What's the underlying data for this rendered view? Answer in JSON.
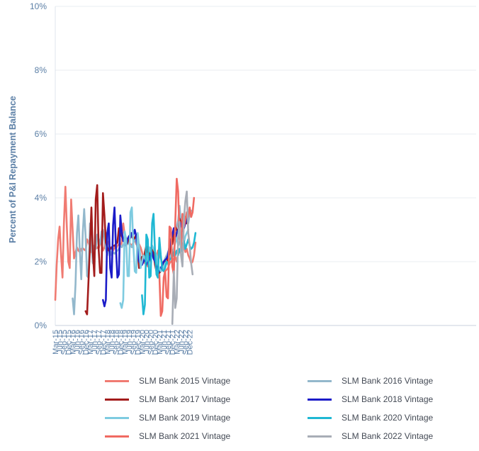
{
  "chart_data": {
    "type": "line",
    "title": "",
    "ylabel": "Percent of P&I Repayment  Balance",
    "xlabel": "",
    "ylim": [
      0,
      10
    ],
    "y_ticks": [
      "0%",
      "2%",
      "4%",
      "6%",
      "8%",
      "10%"
    ],
    "x_ticks": [
      "Mar-15",
      "Jun-15",
      "Sep-15",
      "Dec-15",
      "Mar-16",
      "Jun-16",
      "Sep-16",
      "Dec-16",
      "Mar-17",
      "Jun-17",
      "Sep-17",
      "Dec-17",
      "Mar-18",
      "Jun-18",
      "Sep-18",
      "Dec-18",
      "Mar-19",
      "Jun-19",
      "Sep-19",
      "Dec-19",
      "Mar-20",
      "Jun-20",
      "Sep-20",
      "Dec-20",
      "Mar-21",
      "Jun-21",
      "Sep-21",
      "Dec-21",
      "Mar-22",
      "Jun-22",
      "Sep-22",
      "Dec-22"
    ],
    "grid": "horizontal",
    "legend_position": "bottom",
    "series": [
      {
        "name": "SLM Bank 2015 Vintage",
        "color": "#f07b72",
        "start": "Mar-15",
        "values": [
          0.8,
          1.9,
          2.7,
          3.1,
          2.2,
          1.5,
          3.2,
          4.35,
          3.1,
          2.0,
          1.8,
          3.95,
          3.0,
          2.1,
          2.3,
          2.45,
          2.35,
          2.3,
          2.4,
          2.42,
          2.38,
          2.35,
          2.7,
          2.6,
          2.45,
          2.3,
          2.25,
          2.5,
          2.4,
          2.45,
          2.4,
          2.6,
          2.55,
          2.35,
          2.45,
          2.9,
          2.65,
          2.5,
          2.45,
          2.4,
          2.35,
          2.45,
          2.4,
          2.5,
          2.55,
          2.5,
          2.6,
          3.2,
          2.85,
          2.75,
          2.65,
          2.6,
          2.55,
          2.5,
          2.6,
          2.7,
          2.55,
          2.6,
          2.55,
          2.45,
          2.3,
          2.1,
          1.95,
          1.9,
          1.85,
          2.1,
          2.0,
          2.4,
          2.3,
          2.2,
          2.1,
          2.35,
          2.25,
          2.1,
          1.95,
          1.8,
          1.7,
          1.75,
          1.8,
          1.95,
          2.0,
          2.05,
          2.1,
          2.15,
          2.0,
          2.25,
          2.3,
          2.4,
          2.45,
          2.5,
          2.3,
          2.4,
          2.2,
          2.1,
          1.95,
          2.0,
          2.2,
          2.6
        ]
      },
      {
        "name": "SLM Bank 2016 Vintage",
        "color": "#93b8cc",
        "start": "Mar-16",
        "values": [
          0.85,
          0.35,
          1.3,
          2.9,
          3.45,
          2.3,
          1.45,
          2.9,
          3.65,
          2.8,
          1.55,
          1.5,
          3.2,
          2.55,
          1.95,
          2.5,
          2.4,
          2.85,
          2.7,
          2.55,
          2.95,
          3.0,
          2.7,
          2.4,
          2.2,
          2.5,
          2.35,
          2.2,
          2.3,
          2.25,
          2.3,
          2.35,
          2.4,
          2.5,
          2.45,
          2.55,
          2.5,
          2.6,
          2.65,
          2.55,
          2.5,
          2.45,
          2.6,
          2.75,
          2.6,
          2.5,
          2.45,
          2.15,
          1.95,
          2.0,
          2.1,
          2.2,
          2.3,
          2.4,
          2.35,
          2.25,
          2.1,
          2.0,
          1.9,
          1.8,
          1.7,
          1.75,
          1.85,
          2.0,
          2.1,
          2.2,
          2.3,
          2.4,
          2.6,
          2.8,
          3.0,
          2.9,
          3.1,
          3.3,
          3.75,
          3.2,
          3.0,
          3.1,
          3.2,
          3.4,
          3.2,
          3.5,
          3.6
        ]
      },
      {
        "name": "SLM Bank 2017 Vintage",
        "color": "#a31c1c",
        "start": "Dec-16",
        "values": [
          0.45,
          0.35,
          1.4,
          2.5,
          3.7,
          2.3,
          1.55,
          3.95,
          4.4,
          2.4,
          1.65,
          1.65,
          4.15,
          3.45,
          2.6,
          2.45,
          2.35,
          2.4,
          2.45,
          2.5,
          2.5,
          2.55,
          2.6,
          3.05,
          2.9,
          2.8,
          2.7,
          2.6,
          2.5,
          2.6,
          2.75,
          2.9,
          2.8,
          2.7,
          2.75,
          2.85,
          2.3,
          1.8,
          2.0,
          2.15,
          2.0,
          2.3,
          2.5,
          2.3,
          2.2,
          2.4,
          2.5,
          2.3,
          1.9,
          1.7,
          1.6,
          1.65,
          1.7,
          1.75,
          1.9,
          2.0,
          1.95,
          2.1,
          2.2,
          2.6,
          2.55,
          2.85,
          3.1,
          3.0,
          2.9,
          3.35,
          3.2,
          3.0,
          3.1,
          3.4,
          3.2,
          3.55
        ]
      },
      {
        "name": "SLM Bank 2018 Vintage",
        "color": "#1c1cc8",
        "start": "Dec-17",
        "values": [
          0.8,
          0.6,
          0.8,
          2.9,
          3.2,
          1.8,
          1.5,
          3.15,
          3.7,
          2.4,
          1.5,
          1.6,
          3.45,
          2.95,
          2.65,
          2.6,
          2.5,
          2.7,
          2.8,
          2.75,
          2.9,
          2.85,
          3.0,
          2.8,
          2.35,
          2.0,
          1.95,
          1.9,
          2.0,
          2.1,
          1.9,
          2.15,
          2.05,
          2.2,
          2.3,
          2.1,
          2.0,
          1.85,
          1.75,
          1.7,
          1.8,
          1.9,
          2.0,
          2.05,
          2.1,
          2.2,
          2.5,
          2.7,
          2.85,
          3.05,
          2.7,
          2.9,
          3.0,
          3.1,
          3.2,
          2.95,
          3.05,
          3.2,
          3.35
        ]
      },
      {
        "name": "SLM Bank 2019 Vintage",
        "color": "#7ecbe0",
        "start": "Dec-18",
        "values": [
          0.7,
          0.55,
          0.8,
          2.95,
          2.7,
          1.55,
          1.55,
          3.55,
          3.7,
          2.5,
          1.7,
          1.65,
          2.9,
          2.45,
          1.8,
          2.0,
          2.2,
          2.1,
          2.0,
          2.2,
          2.45,
          2.3,
          2.5,
          2.4,
          2.3,
          2.2,
          1.9,
          1.8,
          1.7,
          1.75,
          1.85,
          1.95,
          2.0,
          1.9,
          2.1,
          2.2,
          2.3,
          2.4,
          2.6,
          2.75,
          2.5,
          2.6,
          2.7,
          2.9,
          2.6,
          2.8,
          2.9,
          3.0
        ]
      },
      {
        "name": "SLM Bank 2020 Vintage",
        "color": "#1fb8d3",
        "start": "Mar-20",
        "values": [
          0.95,
          0.35,
          0.65,
          2.85,
          2.7,
          1.5,
          1.55,
          3.2,
          3.5,
          2.3,
          1.6,
          1.5,
          2.75,
          2.2,
          1.75,
          1.7,
          1.8,
          2.0,
          1.95,
          2.05,
          2.1,
          2.15,
          2.3,
          2.2,
          2.35,
          2.2,
          2.4,
          2.3,
          2.55,
          2.65,
          2.4,
          2.55,
          2.7,
          2.5,
          2.4,
          2.45,
          2.6,
          2.9
        ]
      },
      {
        "name": "SLM Bank 2021 Vintage",
        "color": "#f06a62",
        "start": "Mar-21",
        "values": [
          1.6,
          0.3,
          0.45,
          1.5,
          1.7,
          0.9,
          0.85,
          3.1,
          3.05,
          1.85,
          1.6,
          3.2,
          4.6,
          4.2,
          2.8,
          2.4,
          3.5,
          3.1,
          3.3,
          3.55,
          3.4,
          3.7,
          3.4,
          3.55,
          4.0
        ]
      },
      {
        "name": "SLM Bank 2022 Vintage",
        "color": "#a8adb6",
        "start": "Dec-21",
        "values": [
          0.05,
          1.7,
          0.55,
          0.85,
          2.8,
          3.25,
          2.2,
          1.85,
          3.35,
          3.9,
          4.2,
          2.9,
          2.5,
          1.95,
          1.6
        ]
      }
    ]
  }
}
